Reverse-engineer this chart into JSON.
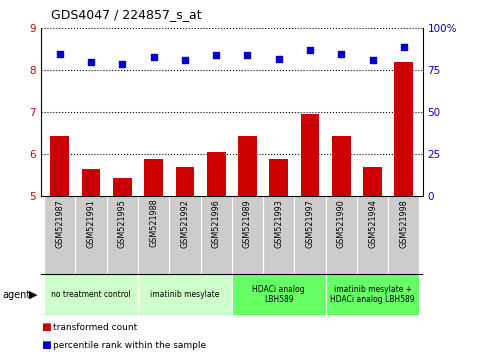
{
  "title": "GDS4047 / 224857_s_at",
  "samples": [
    "GSM521987",
    "GSM521991",
    "GSM521995",
    "GSM521988",
    "GSM521992",
    "GSM521996",
    "GSM521989",
    "GSM521993",
    "GSM521997",
    "GSM521990",
    "GSM521994",
    "GSM521998"
  ],
  "bar_values": [
    6.45,
    5.65,
    5.45,
    5.9,
    5.7,
    6.05,
    6.45,
    5.9,
    6.95,
    6.45,
    5.7,
    8.2
  ],
  "scatter_values": [
    85,
    80,
    79,
    83,
    81,
    84,
    84,
    82,
    87,
    85,
    81,
    89
  ],
  "ylim_left": [
    5,
    9
  ],
  "ylim_right": [
    0,
    100
  ],
  "yticks_left": [
    5,
    6,
    7,
    8,
    9
  ],
  "yticks_right": [
    0,
    25,
    50,
    75,
    100
  ],
  "ytick_labels_right": [
    "0",
    "25",
    "50",
    "75",
    "100%"
  ],
  "bar_color": "#cc0000",
  "scatter_color": "#0000cc",
  "agent_groups": [
    {
      "label": "no treatment control",
      "start": 0,
      "end": 3,
      "color": "#ccffcc"
    },
    {
      "label": "imatinib mesylate",
      "start": 3,
      "end": 6,
      "color": "#ccffcc"
    },
    {
      "label": "HDACi analog\nLBH589",
      "start": 6,
      "end": 9,
      "color": "#66ff66"
    },
    {
      "label": "imatinib mesylate +\nHDACi analog LBH589",
      "start": 9,
      "end": 12,
      "color": "#66ff66"
    }
  ],
  "legend_bar_label": "transformed count",
  "legend_scatter_label": "percentile rank within the sample",
  "agent_label": "agent",
  "grid_color": "black",
  "tick_color_left": "#cc0000",
  "tick_color_right": "#0000cc",
  "background_color": "#ffffff",
  "sample_bg_color": "#cccccc"
}
